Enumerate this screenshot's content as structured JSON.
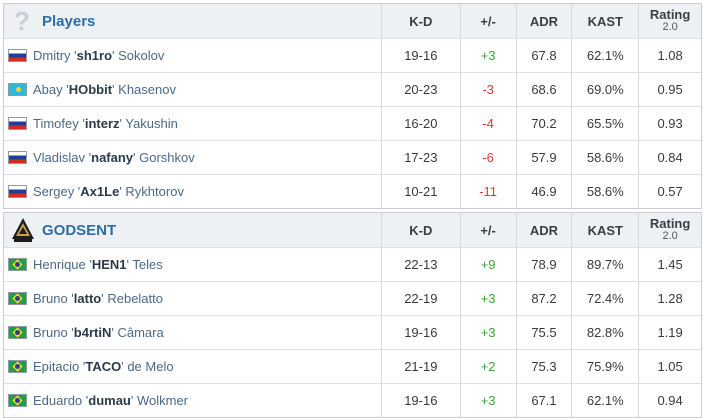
{
  "columns": {
    "kd": "K-D",
    "pm": "+/-",
    "adr": "ADR",
    "kast": "KAST",
    "rating": "Rating",
    "rating_version": "2.0"
  },
  "teams": [
    {
      "name": "Players",
      "logo": "question-mark-icon",
      "players": [
        {
          "flag": "flag-russia-icon",
          "first": "Dmitry '",
          "nick": "sh1ro",
          "last": "' Sokolov",
          "kd": "19-16",
          "pm": "+3",
          "adr": "67.8",
          "kast": "62.1%",
          "rating": "1.08"
        },
        {
          "flag": "flag-kazakhstan-icon",
          "first": "Abay '",
          "nick": "HObbit",
          "last": "' Khasenov",
          "kd": "20-23",
          "pm": "-3",
          "adr": "68.6",
          "kast": "69.0%",
          "rating": "0.95"
        },
        {
          "flag": "flag-russia-icon",
          "first": "Timofey '",
          "nick": "interz",
          "last": "' Yakushin",
          "kd": "16-20",
          "pm": "-4",
          "adr": "70.2",
          "kast": "65.5%",
          "rating": "0.93"
        },
        {
          "flag": "flag-russia-icon",
          "first": "Vladislav '",
          "nick": "nafany",
          "last": "' Gorshkov",
          "kd": "17-23",
          "pm": "-6",
          "adr": "57.9",
          "kast": "58.6%",
          "rating": "0.84"
        },
        {
          "flag": "flag-russia-icon",
          "first": "Sergey '",
          "nick": "Ax1Le",
          "last": "' Rykhtorov",
          "kd": "10-21",
          "pm": "-11",
          "adr": "46.9",
          "kast": "58.6%",
          "rating": "0.57"
        }
      ]
    },
    {
      "name": "GODSENT",
      "logo": "godsent-logo-icon",
      "players": [
        {
          "flag": "flag-brazil-icon",
          "first": "Henrique '",
          "nick": "HEN1",
          "last": "' Teles",
          "kd": "22-13",
          "pm": "+9",
          "adr": "78.9",
          "kast": "89.7%",
          "rating": "1.45"
        },
        {
          "flag": "flag-brazil-icon",
          "first": "Bruno '",
          "nick": "latto",
          "last": "' Rebelatto",
          "kd": "22-19",
          "pm": "+3",
          "adr": "87.2",
          "kast": "72.4%",
          "rating": "1.28"
        },
        {
          "flag": "flag-brazil-icon",
          "first": "Bruno '",
          "nick": "b4rtiN",
          "last": "' Câmara",
          "kd": "19-16",
          "pm": "+3",
          "adr": "75.5",
          "kast": "82.8%",
          "rating": "1.19"
        },
        {
          "flag": "flag-brazil-icon",
          "first": "Epitacio '",
          "nick": "TACO",
          "last": "' de Melo",
          "kd": "21-19",
          "pm": "+2",
          "adr": "75.3",
          "kast": "75.9%",
          "rating": "1.05"
        },
        {
          "flag": "flag-brazil-icon",
          "first": "Eduardo '",
          "nick": "dumau",
          "last": "' Wolkmer",
          "kd": "19-16",
          "pm": "+3",
          "adr": "67.1",
          "kast": "62.1%",
          "rating": "0.94"
        }
      ]
    }
  ],
  "colors": {
    "team_name": "#2f6ea3",
    "positive": "#3aa63a",
    "negative": "#d63b3b",
    "header_bg": "#eef1f4"
  }
}
